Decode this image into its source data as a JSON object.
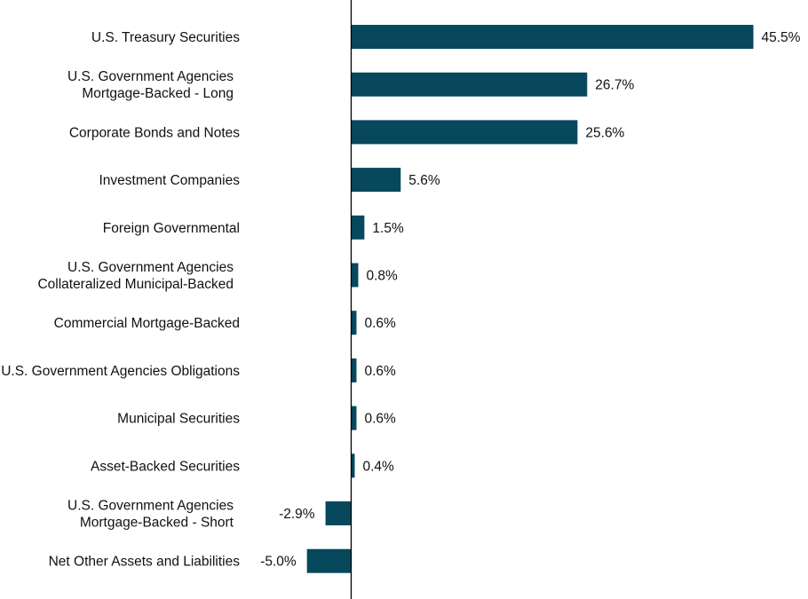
{
  "chart_data": {
    "type": "bar",
    "orientation": "horizontal",
    "title": "",
    "xlabel": "",
    "ylabel": "",
    "bar_color": "#07485c",
    "axis_color": "#000000",
    "grid": false,
    "legend": "none",
    "categories": [
      [
        "U.S. Treasury Securities"
      ],
      [
        "U.S. Government Agencies",
        "Mortgage-Backed - Long"
      ],
      [
        "Corporate Bonds and Notes"
      ],
      [
        "Investment Companies"
      ],
      [
        "Foreign Governmental"
      ],
      [
        "U.S. Government Agencies",
        "Collateralized Municipal-Backed"
      ],
      [
        "Commercial Mortgage-Backed"
      ],
      [
        "U.S. Government Agencies Obligations"
      ],
      [
        "Municipal Securities"
      ],
      [
        "Asset-Backed Securities"
      ],
      [
        "U.S. Government Agencies",
        "Mortgage-Backed - Short"
      ],
      [
        "Net Other Assets and Liabilities"
      ]
    ],
    "values": [
      45.5,
      26.7,
      25.6,
      5.6,
      1.5,
      0.8,
      0.6,
      0.6,
      0.6,
      0.4,
      -2.9,
      -5.0
    ],
    "value_labels": [
      "45.5%",
      "26.7%",
      "25.6%",
      "5.6%",
      "1.5%",
      "0.8%",
      "0.6%",
      "0.6%",
      "0.6%",
      "0.4%",
      "-2.9%",
      "-5.0%"
    ]
  }
}
